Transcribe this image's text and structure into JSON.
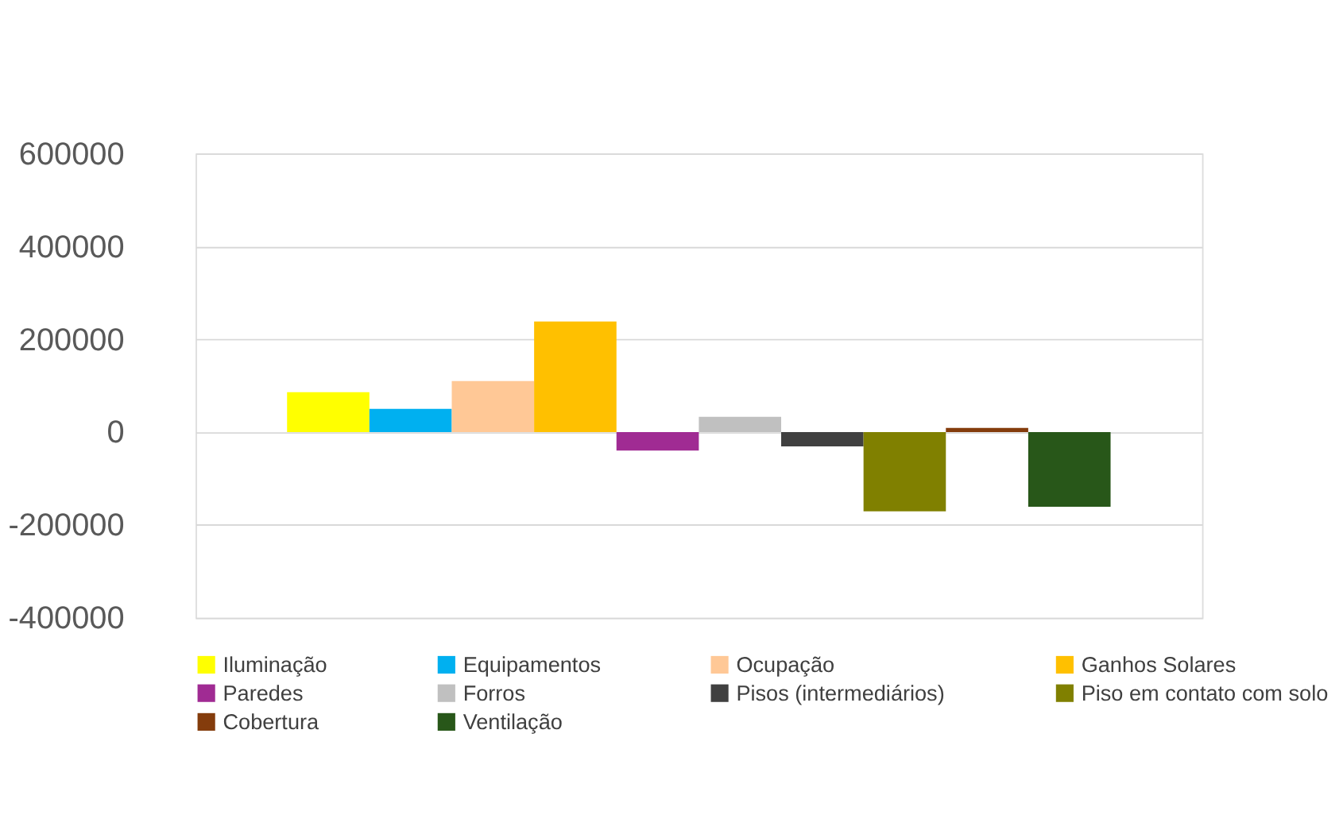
{
  "chart_data": {
    "type": "bar",
    "categories": [
      null
    ],
    "series": [
      {
        "name": "Iluminação",
        "color": "#ffff00",
        "values": [
          86000
        ]
      },
      {
        "name": "Equipamentos",
        "color": "#00b0f0",
        "values": [
          50000
        ]
      },
      {
        "name": "Ocupação",
        "color": "#ffc896",
        "values": [
          110000
        ]
      },
      {
        "name": "Ganhos Solares",
        "color": "#ffc000",
        "values": [
          238000
        ]
      },
      {
        "name": "Paredes",
        "color": "#a02b93",
        "values": [
          -40000
        ]
      },
      {
        "name": "Forros",
        "color": "#c0c0c0",
        "values": [
          33000
        ]
      },
      {
        "name": "Pisos (intermediários)",
        "color": "#404040",
        "values": [
          -31000
        ]
      },
      {
        "name": "Piso em contato com solo",
        "color": "#808000",
        "values": [
          -171000
        ]
      },
      {
        "name": "Cobertura",
        "color": "#843c0c",
        "values": [
          9000
        ]
      },
      {
        "name": "Ventilação",
        "color": "#285719",
        "values": [
          -161000
        ]
      }
    ],
    "ylim": [
      -400000,
      600000
    ],
    "yticks": [
      -400000,
      -200000,
      0,
      200000,
      400000,
      600000
    ],
    "grid": "y",
    "legend": "bottom",
    "tick_labels": "y"
  }
}
